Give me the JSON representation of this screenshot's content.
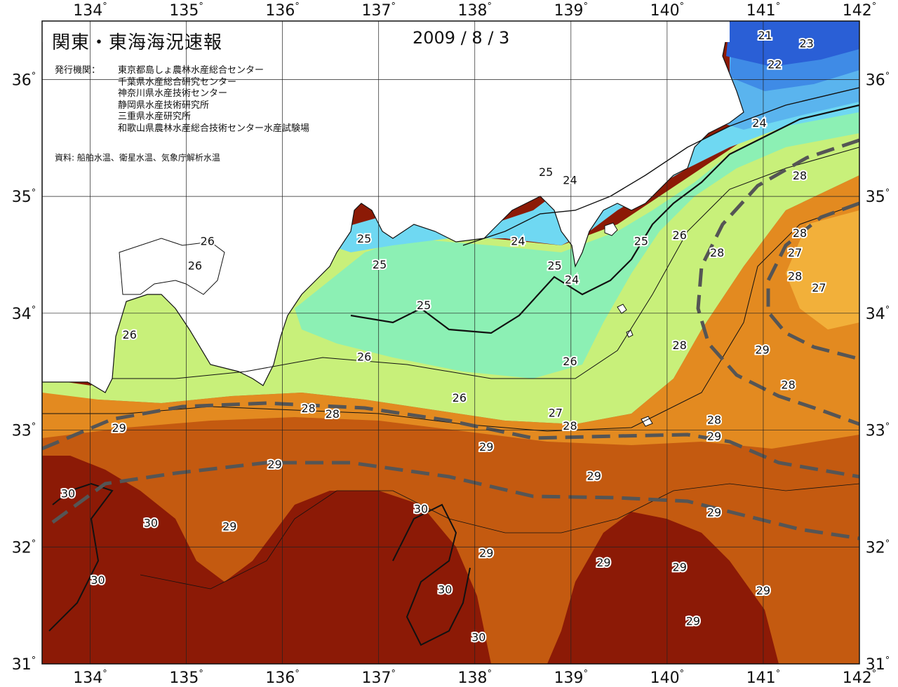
{
  "title": "関東・東海海況速報",
  "date": "2009 / 8 / 3",
  "agencies_label": "発行機関：",
  "agencies": [
    "東京都島しょ農林水産総合センター",
    "千葉県水産総合研究センター",
    "神奈川県水産技術センター",
    "静岡県水産技術研究所",
    "三重県水産研究所",
    "和歌山県農林水産総合技術センター水産試験場"
  ],
  "source": "資料: 船舶水温、衛星水温、気象庁解析水温",
  "axes": {
    "lon_ticks": [
      "134",
      "135",
      "136",
      "137",
      "138",
      "139",
      "140",
      "141",
      "142"
    ],
    "lat_ticks": [
      "36",
      "35",
      "34",
      "33",
      "32",
      "31"
    ],
    "lon_range": [
      133.5,
      142
    ],
    "lat_range": [
      31,
      36.5
    ],
    "degree_symbol": "°"
  },
  "colors": {
    "t21": "#2a5fd6",
    "t22": "#3f8be6",
    "t23": "#5ab4ee",
    "t24": "#6fd8f2",
    "t25": "#8cf0b4",
    "t26": "#c8f07a",
    "t27": "#f2b03a",
    "t28": "#e38a20",
    "t29": "#c45a10",
    "t30": "#8c1a06",
    "land": "#ffffff",
    "current_axis": "#555555"
  },
  "isotherm_labels": [
    {
      "text": "21",
      "lon": 141.02,
      "lat": 36.38
    },
    {
      "text": "23",
      "lon": 141.45,
      "lat": 36.31
    },
    {
      "text": "22",
      "lon": 141.12,
      "lat": 36.13
    },
    {
      "text": "24",
      "lon": 140.96,
      "lat": 35.63
    },
    {
      "text": "28",
      "lon": 141.38,
      "lat": 35.18
    },
    {
      "text": "25",
      "lon": 138.74,
      "lat": 35.21
    },
    {
      "text": "24",
      "lon": 138.99,
      "lat": 35.14
    },
    {
      "text": "26",
      "lon": 135.22,
      "lat": 34.62
    },
    {
      "text": "26",
      "lon": 135.09,
      "lat": 34.41
    },
    {
      "text": "25",
      "lon": 136.85,
      "lat": 34.64
    },
    {
      "text": "25",
      "lon": 137.01,
      "lat": 34.42
    },
    {
      "text": "24",
      "lon": 138.45,
      "lat": 34.62
    },
    {
      "text": "25",
      "lon": 138.83,
      "lat": 34.41
    },
    {
      "text": "24",
      "lon": 139.01,
      "lat": 34.29
    },
    {
      "text": "25",
      "lon": 139.73,
      "lat": 34.62
    },
    {
      "text": "26",
      "lon": 140.13,
      "lat": 34.67
    },
    {
      "text": "28",
      "lon": 140.52,
      "lat": 34.52
    },
    {
      "text": "28",
      "lon": 141.38,
      "lat": 34.69
    },
    {
      "text": "27",
      "lon": 141.33,
      "lat": 34.52
    },
    {
      "text": "28",
      "lon": 141.33,
      "lat": 34.32
    },
    {
      "text": "27",
      "lon": 141.58,
      "lat": 34.22
    },
    {
      "text": "25",
      "lon": 137.47,
      "lat": 34.07
    },
    {
      "text": "26",
      "lon": 134.41,
      "lat": 33.82
    },
    {
      "text": "28",
      "lon": 140.13,
      "lat": 33.73
    },
    {
      "text": "29",
      "lon": 140.99,
      "lat": 33.69
    },
    {
      "text": "26",
      "lon": 136.85,
      "lat": 33.63
    },
    {
      "text": "26",
      "lon": 138.99,
      "lat": 33.59
    },
    {
      "text": "28",
      "lon": 141.26,
      "lat": 33.39
    },
    {
      "text": "26",
      "lon": 137.84,
      "lat": 33.28
    },
    {
      "text": "28",
      "lon": 136.27,
      "lat": 33.19
    },
    {
      "text": "28",
      "lon": 136.52,
      "lat": 33.14
    },
    {
      "text": "27",
      "lon": 138.84,
      "lat": 33.15
    },
    {
      "text": "28",
      "lon": 138.99,
      "lat": 33.04
    },
    {
      "text": "28",
      "lon": 140.49,
      "lat": 33.09
    },
    {
      "text": "29",
      "lon": 134.3,
      "lat": 33.02
    },
    {
      "text": "29",
      "lon": 140.49,
      "lat": 32.95
    },
    {
      "text": "29",
      "lon": 138.12,
      "lat": 32.86
    },
    {
      "text": "29",
      "lon": 135.92,
      "lat": 32.71
    },
    {
      "text": "29",
      "lon": 139.24,
      "lat": 32.61
    },
    {
      "text": "30",
      "lon": 133.77,
      "lat": 32.46
    },
    {
      "text": "30",
      "lon": 137.44,
      "lat": 32.33
    },
    {
      "text": "29",
      "lon": 140.49,
      "lat": 32.3
    },
    {
      "text": "30",
      "lon": 134.63,
      "lat": 32.21
    },
    {
      "text": "29",
      "lon": 135.45,
      "lat": 32.18
    },
    {
      "text": "29",
      "lon": 138.12,
      "lat": 31.95
    },
    {
      "text": "29",
      "lon": 139.34,
      "lat": 31.87
    },
    {
      "text": "29",
      "lon": 140.13,
      "lat": 31.83
    },
    {
      "text": "30",
      "lon": 134.08,
      "lat": 31.72
    },
    {
      "text": "30",
      "lon": 137.69,
      "lat": 31.64
    },
    {
      "text": "29",
      "lon": 141.0,
      "lat": 31.63
    },
    {
      "text": "29",
      "lon": 140.27,
      "lat": 31.37
    },
    {
      "text": "30",
      "lon": 138.04,
      "lat": 31.23
    }
  ]
}
